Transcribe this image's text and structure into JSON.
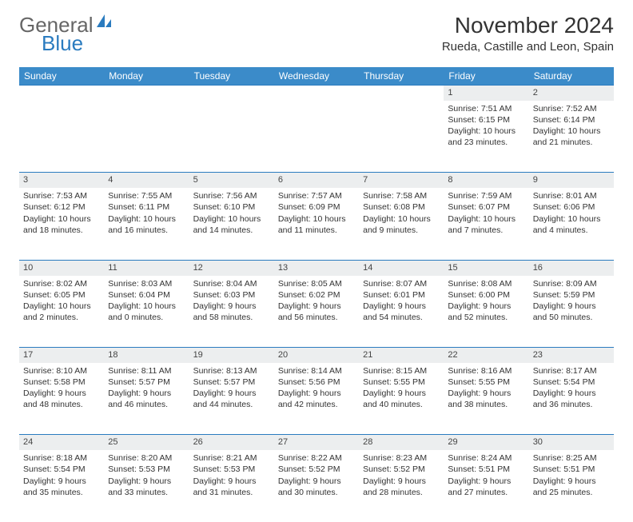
{
  "brand": {
    "part1": "General",
    "part2": "Blue"
  },
  "title": "November 2024",
  "location": "Rueda, Castille and Leon, Spain",
  "colors": {
    "header_bg": "#3b8bc9",
    "border": "#2a7bbf",
    "daynum_bg": "#eceeef",
    "text": "#333333",
    "bg": "#ffffff"
  },
  "weekdays": [
    "Sunday",
    "Monday",
    "Tuesday",
    "Wednesday",
    "Thursday",
    "Friday",
    "Saturday"
  ],
  "weeks": [
    [
      null,
      null,
      null,
      null,
      null,
      {
        "n": "1",
        "sr": "Sunrise: 7:51 AM",
        "ss": "Sunset: 6:15 PM",
        "d1": "Daylight: 10 hours",
        "d2": "and 23 minutes."
      },
      {
        "n": "2",
        "sr": "Sunrise: 7:52 AM",
        "ss": "Sunset: 6:14 PM",
        "d1": "Daylight: 10 hours",
        "d2": "and 21 minutes."
      }
    ],
    [
      {
        "n": "3",
        "sr": "Sunrise: 7:53 AM",
        "ss": "Sunset: 6:12 PM",
        "d1": "Daylight: 10 hours",
        "d2": "and 18 minutes."
      },
      {
        "n": "4",
        "sr": "Sunrise: 7:55 AM",
        "ss": "Sunset: 6:11 PM",
        "d1": "Daylight: 10 hours",
        "d2": "and 16 minutes."
      },
      {
        "n": "5",
        "sr": "Sunrise: 7:56 AM",
        "ss": "Sunset: 6:10 PM",
        "d1": "Daylight: 10 hours",
        "d2": "and 14 minutes."
      },
      {
        "n": "6",
        "sr": "Sunrise: 7:57 AM",
        "ss": "Sunset: 6:09 PM",
        "d1": "Daylight: 10 hours",
        "d2": "and 11 minutes."
      },
      {
        "n": "7",
        "sr": "Sunrise: 7:58 AM",
        "ss": "Sunset: 6:08 PM",
        "d1": "Daylight: 10 hours",
        "d2": "and 9 minutes."
      },
      {
        "n": "8",
        "sr": "Sunrise: 7:59 AM",
        "ss": "Sunset: 6:07 PM",
        "d1": "Daylight: 10 hours",
        "d2": "and 7 minutes."
      },
      {
        "n": "9",
        "sr": "Sunrise: 8:01 AM",
        "ss": "Sunset: 6:06 PM",
        "d1": "Daylight: 10 hours",
        "d2": "and 4 minutes."
      }
    ],
    [
      {
        "n": "10",
        "sr": "Sunrise: 8:02 AM",
        "ss": "Sunset: 6:05 PM",
        "d1": "Daylight: 10 hours",
        "d2": "and 2 minutes."
      },
      {
        "n": "11",
        "sr": "Sunrise: 8:03 AM",
        "ss": "Sunset: 6:04 PM",
        "d1": "Daylight: 10 hours",
        "d2": "and 0 minutes."
      },
      {
        "n": "12",
        "sr": "Sunrise: 8:04 AM",
        "ss": "Sunset: 6:03 PM",
        "d1": "Daylight: 9 hours",
        "d2": "and 58 minutes."
      },
      {
        "n": "13",
        "sr": "Sunrise: 8:05 AM",
        "ss": "Sunset: 6:02 PM",
        "d1": "Daylight: 9 hours",
        "d2": "and 56 minutes."
      },
      {
        "n": "14",
        "sr": "Sunrise: 8:07 AM",
        "ss": "Sunset: 6:01 PM",
        "d1": "Daylight: 9 hours",
        "d2": "and 54 minutes."
      },
      {
        "n": "15",
        "sr": "Sunrise: 8:08 AM",
        "ss": "Sunset: 6:00 PM",
        "d1": "Daylight: 9 hours",
        "d2": "and 52 minutes."
      },
      {
        "n": "16",
        "sr": "Sunrise: 8:09 AM",
        "ss": "Sunset: 5:59 PM",
        "d1": "Daylight: 9 hours",
        "d2": "and 50 minutes."
      }
    ],
    [
      {
        "n": "17",
        "sr": "Sunrise: 8:10 AM",
        "ss": "Sunset: 5:58 PM",
        "d1": "Daylight: 9 hours",
        "d2": "and 48 minutes."
      },
      {
        "n": "18",
        "sr": "Sunrise: 8:11 AM",
        "ss": "Sunset: 5:57 PM",
        "d1": "Daylight: 9 hours",
        "d2": "and 46 minutes."
      },
      {
        "n": "19",
        "sr": "Sunrise: 8:13 AM",
        "ss": "Sunset: 5:57 PM",
        "d1": "Daylight: 9 hours",
        "d2": "and 44 minutes."
      },
      {
        "n": "20",
        "sr": "Sunrise: 8:14 AM",
        "ss": "Sunset: 5:56 PM",
        "d1": "Daylight: 9 hours",
        "d2": "and 42 minutes."
      },
      {
        "n": "21",
        "sr": "Sunrise: 8:15 AM",
        "ss": "Sunset: 5:55 PM",
        "d1": "Daylight: 9 hours",
        "d2": "and 40 minutes."
      },
      {
        "n": "22",
        "sr": "Sunrise: 8:16 AM",
        "ss": "Sunset: 5:55 PM",
        "d1": "Daylight: 9 hours",
        "d2": "and 38 minutes."
      },
      {
        "n": "23",
        "sr": "Sunrise: 8:17 AM",
        "ss": "Sunset: 5:54 PM",
        "d1": "Daylight: 9 hours",
        "d2": "and 36 minutes."
      }
    ],
    [
      {
        "n": "24",
        "sr": "Sunrise: 8:18 AM",
        "ss": "Sunset: 5:54 PM",
        "d1": "Daylight: 9 hours",
        "d2": "and 35 minutes."
      },
      {
        "n": "25",
        "sr": "Sunrise: 8:20 AM",
        "ss": "Sunset: 5:53 PM",
        "d1": "Daylight: 9 hours",
        "d2": "and 33 minutes."
      },
      {
        "n": "26",
        "sr": "Sunrise: 8:21 AM",
        "ss": "Sunset: 5:53 PM",
        "d1": "Daylight: 9 hours",
        "d2": "and 31 minutes."
      },
      {
        "n": "27",
        "sr": "Sunrise: 8:22 AM",
        "ss": "Sunset: 5:52 PM",
        "d1": "Daylight: 9 hours",
        "d2": "and 30 minutes."
      },
      {
        "n": "28",
        "sr": "Sunrise: 8:23 AM",
        "ss": "Sunset: 5:52 PM",
        "d1": "Daylight: 9 hours",
        "d2": "and 28 minutes."
      },
      {
        "n": "29",
        "sr": "Sunrise: 8:24 AM",
        "ss": "Sunset: 5:51 PM",
        "d1": "Daylight: 9 hours",
        "d2": "and 27 minutes."
      },
      {
        "n": "30",
        "sr": "Sunrise: 8:25 AM",
        "ss": "Sunset: 5:51 PM",
        "d1": "Daylight: 9 hours",
        "d2": "and 25 minutes."
      }
    ]
  ]
}
